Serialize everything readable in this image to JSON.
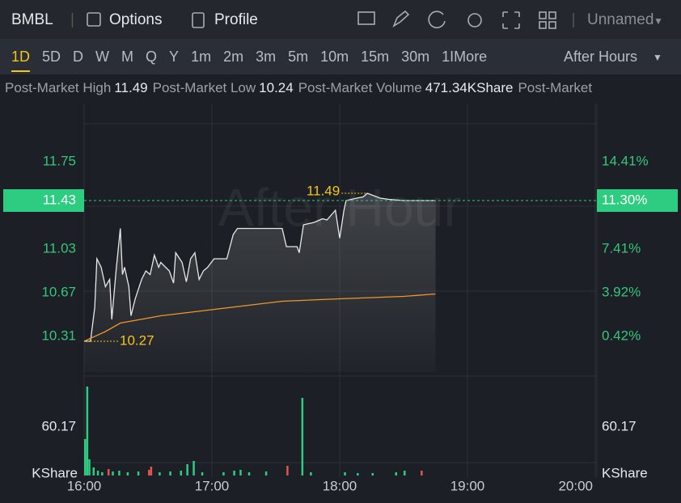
{
  "toolbar": {
    "symbol": "BMBL",
    "tabs": [
      "Options",
      "Profile"
    ],
    "layout": "Unnamed"
  },
  "periods": {
    "items": [
      "1D",
      "5D",
      "D",
      "W",
      "M",
      "Q",
      "Y",
      "1m",
      "2m",
      "3m",
      "5m",
      "10m",
      "15m",
      "30m",
      "1IMore"
    ],
    "active": 0,
    "session": "After Hours"
  },
  "stats": [
    {
      "label": "Post-Market High",
      "value": "11.49"
    },
    {
      "label": "Post-Market Low",
      "value": "10.24"
    },
    {
      "label": "Post-Market Volume",
      "value": "471.34KShare"
    },
    {
      "label": "Post-Market"
    }
  ],
  "chart_data": {
    "type": "line",
    "watermark": "After Hour",
    "xlim": [
      "16:00",
      "20:00"
    ],
    "xticks": [
      "16:00",
      "17:00",
      "18:00",
      "19:00",
      "20:00"
    ],
    "ylim": [
      10.05,
      12.25
    ],
    "yticks": [
      10.31,
      10.67,
      11.03,
      11.75
    ],
    "y2lim": [
      -2.11,
      19.27
    ],
    "y2ticks": [
      {
        "value": 0.42,
        "label": "0.42%"
      },
      {
        "value": 3.92,
        "label": "3.92%"
      },
      {
        "value": 7.41,
        "label": "7.41%"
      },
      {
        "value": 14.41,
        "label": "14.41%"
      }
    ],
    "last_price": 11.43,
    "last_change": {
      "value": 11.3,
      "label": "11.30%"
    },
    "high_mark": {
      "x": "18:13",
      "value": 11.49
    },
    "low_mark": {
      "x": "16:00",
      "value": 10.27
    },
    "series": [
      {
        "color": "#e8e8e8",
        "area": true,
        "x": [
          "16:00",
          "16:03",
          "16:05",
          "16:06",
          "16:08",
          "16:10",
          "16:12",
          "16:13",
          "16:15",
          "16:17",
          "16:18",
          "16:19",
          "16:21",
          "16:22",
          "16:24",
          "16:27",
          "16:29",
          "16:31",
          "16:33",
          "16:35",
          "16:36",
          "16:40",
          "16:42",
          "16:43",
          "16:46",
          "16:48",
          "16:50",
          "16:52",
          "16:54",
          "16:56",
          "16:58",
          "17:01",
          "17:07",
          "17:10",
          "17:12",
          "17:22",
          "17:33",
          "17:35",
          "17:40",
          "17:41",
          "17:43",
          "17:48",
          "17:52",
          "17:54",
          "17:58",
          "18:00",
          "18:02",
          "18:03",
          "18:08",
          "18:11",
          "18:13",
          "18:19",
          "18:23",
          "18:30",
          "18:38",
          "18:45"
        ],
        "values": [
          10.27,
          10.27,
          10.55,
          10.95,
          10.88,
          10.72,
          10.78,
          10.45,
          10.85,
          11.2,
          10.82,
          10.88,
          10.72,
          10.48,
          10.62,
          10.78,
          10.85,
          10.82,
          10.98,
          10.88,
          10.92,
          10.85,
          10.75,
          11.0,
          10.92,
          10.76,
          10.95,
          11.0,
          10.78,
          10.85,
          10.88,
          10.95,
          10.95,
          11.15,
          11.2,
          11.2,
          11.2,
          11.05,
          11.05,
          11.0,
          11.23,
          11.25,
          11.28,
          11.27,
          11.35,
          11.12,
          11.35,
          11.43,
          11.45,
          11.46,
          11.49,
          11.45,
          11.44,
          11.43,
          11.43,
          11.43
        ]
      },
      {
        "color": "#f0962a",
        "x": [
          "16:00",
          "16:10",
          "16:17",
          "16:36",
          "16:55",
          "17:14",
          "17:33",
          "18:00",
          "18:30",
          "18:45"
        ],
        "values": [
          10.27,
          10.35,
          10.42,
          10.48,
          10.52,
          10.56,
          10.6,
          10.62,
          10.64,
          10.66
        ]
      }
    ],
    "volume": {
      "unit": "KShare",
      "ylim": [
        0,
        118
      ],
      "yticks": [
        60.17
      ],
      "x": [
        "16:00",
        "16:01",
        "16:02",
        "16:04",
        "16:06",
        "16:08",
        "16:11",
        "16:13",
        "16:16",
        "16:20",
        "16:25",
        "16:30",
        "16:31",
        "16:35",
        "16:40",
        "16:45",
        "16:48",
        "16:51",
        "16:55",
        "17:05",
        "17:10",
        "17:13",
        "17:17",
        "17:25",
        "17:35",
        "17:42",
        "17:46",
        "18:02",
        "18:08",
        "18:15",
        "18:26",
        "18:30",
        "18:38"
      ],
      "values": [
        45,
        110,
        20,
        10,
        6,
        4,
        8,
        5,
        6,
        4,
        5,
        7,
        11,
        4,
        5,
        6,
        14,
        18,
        4,
        4,
        6,
        7,
        4,
        5,
        12,
        96,
        4,
        4,
        3,
        3,
        4,
        6,
        6
      ],
      "colors": [
        "#2ecc80",
        "#2ecc80",
        "#2ecc80",
        "#2ecc80",
        "#2ecc80",
        "#2ecc80",
        "#e0554f",
        "#2ecc80",
        "#2ecc80",
        "#2ecc80",
        "#2ecc80",
        "#e0554f",
        "#e0554f",
        "#2ecc80",
        "#2ecc80",
        "#2ecc80",
        "#2ecc80",
        "#2ecc80",
        "#2ecc80",
        "#2ecc80",
        "#2ecc80",
        "#2ecc80",
        "#2ecc80",
        "#2ecc80",
        "#e0554f",
        "#2ecc80",
        "#2ecc80",
        "#2ecc80",
        "#2ecc80",
        "#2ecc80",
        "#2ecc80",
        "#2ecc80",
        "#e0554f"
      ]
    }
  }
}
